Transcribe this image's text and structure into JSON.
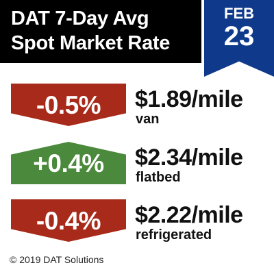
{
  "header": {
    "title_line1": "DAT 7-Day Avg",
    "title_line2": "Spot Market Rate"
  },
  "date": {
    "month": "FEB",
    "day": "23"
  },
  "rates": [
    {
      "change": "-0.5%",
      "direction": "down",
      "price": "$1.89/mile",
      "type": "van"
    },
    {
      "change": "+0.4%",
      "direction": "up",
      "price": "$2.34/mile",
      "type": "flatbed"
    },
    {
      "change": "-0.4%",
      "direction": "down",
      "price": "$2.22/mile",
      "type": "refrigerated"
    }
  ],
  "colors": {
    "down": "#a72a1a",
    "up": "#4b8a3d",
    "ribbon": "#0f3a8c",
    "header_bg": "#000000"
  },
  "footer": {
    "copyright": "© 2019 DAT Solutions"
  }
}
